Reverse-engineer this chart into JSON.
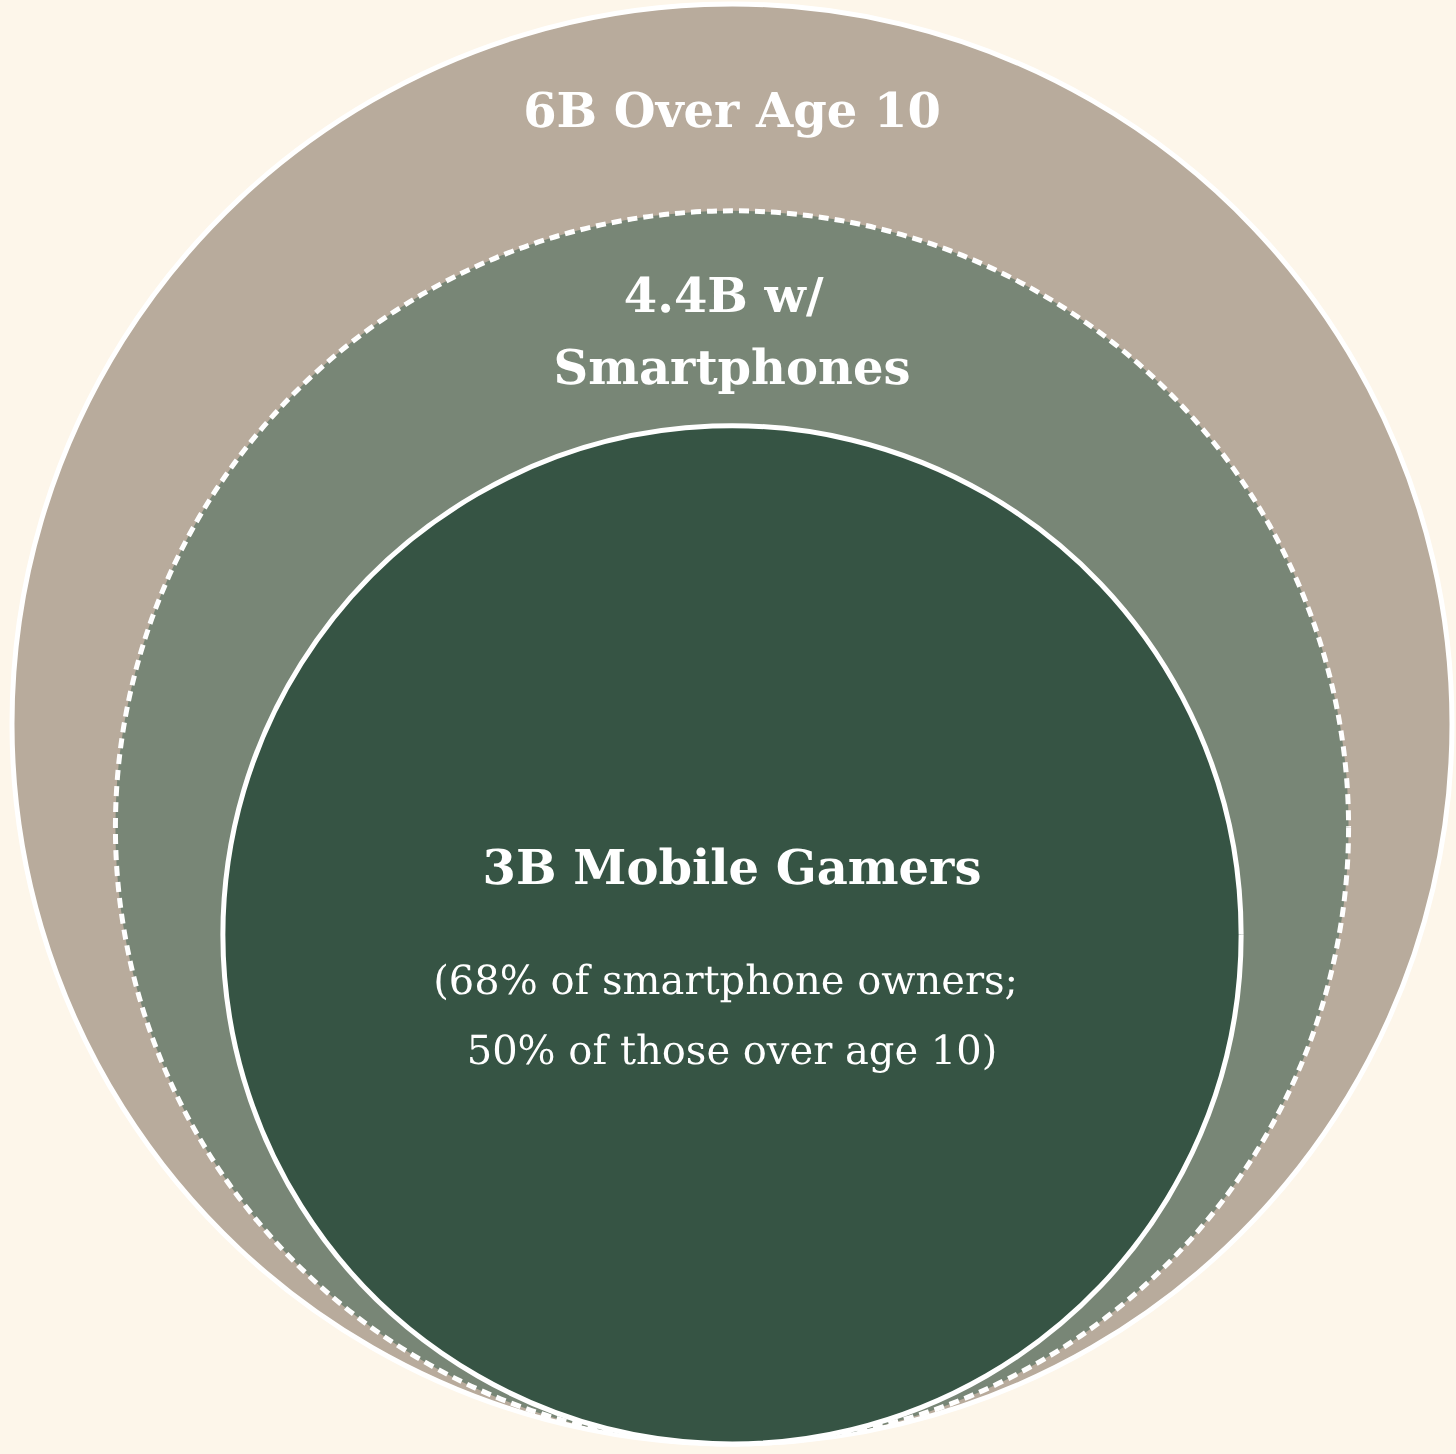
{
  "chart_data": {
    "type": "other",
    "categories": [
      "Over Age 10",
      "w/ Smartphones",
      "Mobile Gamers"
    ],
    "values": [
      6,
      4.4,
      3
    ],
    "value_labels": [
      "6B",
      "4.4B",
      "3B"
    ],
    "colors": [
      "#b8ab9c",
      "#788676",
      "#365444"
    ],
    "annotations": [
      "(68% of smartphone owners; 50% of those over age 10)"
    ]
  }
}
